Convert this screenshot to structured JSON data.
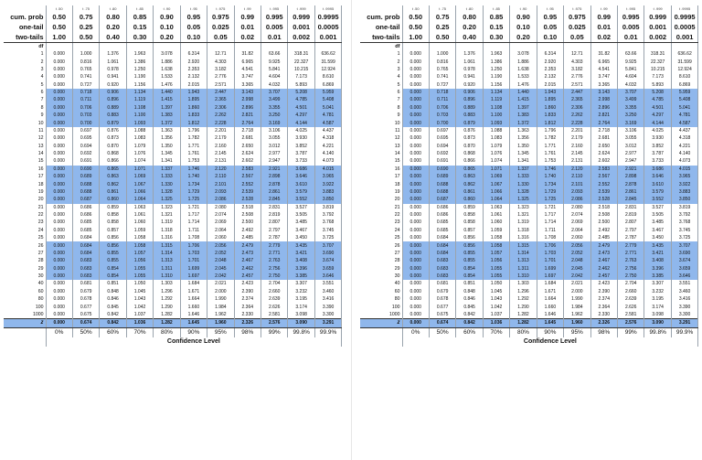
{
  "table": {
    "labels": {
      "cum_prob": "cum. prob",
      "one_tail": "one-tail",
      "two_tails": "two-tails",
      "df": "df",
      "z": "z",
      "confidence_level": "Confidence Level"
    },
    "t_subscripts": [
      "t .50",
      "t .75",
      "t .80",
      "t .85",
      "t .90",
      "t .95",
      "t .975",
      "t .99",
      "t .995",
      "t .999",
      "t .9995"
    ],
    "cum_prob": [
      "0.50",
      "0.75",
      "0.80",
      "0.85",
      "0.90",
      "0.95",
      "0.975",
      "0.99",
      "0.995",
      "0.999",
      "0.9995"
    ],
    "one_tail": [
      "0.50",
      "0.25",
      "0.20",
      "0.15",
      "0.10",
      "0.05",
      "0.025",
      "0.01",
      "0.005",
      "0.001",
      "0.0005"
    ],
    "two_tails": [
      "1.00",
      "0.50",
      "0.40",
      "0.30",
      "0.20",
      "0.10",
      "0.05",
      "0.02",
      "0.01",
      "0.002",
      "0.001"
    ],
    "rows": [
      [
        "1",
        "0.000",
        "1.000",
        "1.376",
        "1.963",
        "3.078",
        "6.314",
        "12.71",
        "31.82",
        "63.66",
        "318.31",
        "636.62"
      ],
      [
        "2",
        "0.000",
        "0.816",
        "1.061",
        "1.386",
        "1.886",
        "2.920",
        "4.303",
        "6.965",
        "9.925",
        "22.327",
        "31.599"
      ],
      [
        "3",
        "0.000",
        "0.765",
        "0.978",
        "1.250",
        "1.638",
        "2.353",
        "3.182",
        "4.541",
        "5.841",
        "10.215",
        "12.924"
      ],
      [
        "4",
        "0.000",
        "0.741",
        "0.941",
        "1.190",
        "1.533",
        "2.132",
        "2.776",
        "3.747",
        "4.604",
        "7.173",
        "8.610"
      ],
      [
        "5",
        "0.000",
        "0.727",
        "0.920",
        "1.156",
        "1.476",
        "2.015",
        "2.571",
        "3.365",
        "4.032",
        "5.893",
        "6.869"
      ],
      [
        "6",
        "0.000",
        "0.718",
        "0.906",
        "1.134",
        "1.440",
        "1.943",
        "2.447",
        "3.143",
        "3.707",
        "5.208",
        "5.959"
      ],
      [
        "7",
        "0.000",
        "0.711",
        "0.896",
        "1.119",
        "1.415",
        "1.895",
        "2.365",
        "2.998",
        "3.499",
        "4.785",
        "5.408"
      ],
      [
        "8",
        "0.000",
        "0.706",
        "0.889",
        "1.108",
        "1.397",
        "1.860",
        "2.306",
        "2.896",
        "3.355",
        "4.501",
        "5.041"
      ],
      [
        "9",
        "0.000",
        "0.703",
        "0.883",
        "1.100",
        "1.383",
        "1.833",
        "2.262",
        "2.821",
        "3.250",
        "4.297",
        "4.781"
      ],
      [
        "10",
        "0.000",
        "0.700",
        "0.879",
        "1.093",
        "1.372",
        "1.812",
        "2.228",
        "2.764",
        "3.169",
        "4.144",
        "4.587"
      ],
      [
        "11",
        "0.000",
        "0.697",
        "0.876",
        "1.088",
        "1.363",
        "1.796",
        "2.201",
        "2.718",
        "3.106",
        "4.025",
        "4.437"
      ],
      [
        "12",
        "0.000",
        "0.695",
        "0.873",
        "1.083",
        "1.356",
        "1.782",
        "2.179",
        "2.681",
        "3.055",
        "3.930",
        "4.318"
      ],
      [
        "13",
        "0.000",
        "0.694",
        "0.870",
        "1.079",
        "1.350",
        "1.771",
        "2.160",
        "2.650",
        "3.012",
        "3.852",
        "4.221"
      ],
      [
        "14",
        "0.000",
        "0.692",
        "0.868",
        "1.076",
        "1.345",
        "1.761",
        "2.145",
        "2.624",
        "2.977",
        "3.787",
        "4.140"
      ],
      [
        "15",
        "0.000",
        "0.691",
        "0.866",
        "1.074",
        "1.341",
        "1.753",
        "2.131",
        "2.602",
        "2.947",
        "3.733",
        "4.073"
      ],
      [
        "16",
        "0.000",
        "0.690",
        "0.865",
        "1.071",
        "1.337",
        "1.746",
        "2.120",
        "2.583",
        "2.921",
        "3.686",
        "4.015"
      ],
      [
        "17",
        "0.000",
        "0.689",
        "0.863",
        "1.069",
        "1.333",
        "1.740",
        "2.110",
        "2.567",
        "2.898",
        "3.646",
        "3.965"
      ],
      [
        "18",
        "0.000",
        "0.688",
        "0.862",
        "1.067",
        "1.330",
        "1.734",
        "2.101",
        "2.552",
        "2.878",
        "3.610",
        "3.922"
      ],
      [
        "19",
        "0.000",
        "0.688",
        "0.861",
        "1.066",
        "1.328",
        "1.729",
        "2.093",
        "2.539",
        "2.861",
        "3.579",
        "3.883"
      ],
      [
        "20",
        "0.000",
        "0.687",
        "0.860",
        "1.064",
        "1.325",
        "1.725",
        "2.086",
        "2.528",
        "2.845",
        "3.552",
        "3.850"
      ],
      [
        "21",
        "0.000",
        "0.686",
        "0.859",
        "1.063",
        "1.323",
        "1.721",
        "2.080",
        "2.518",
        "2.831",
        "3.527",
        "3.819"
      ],
      [
        "22",
        "0.000",
        "0.686",
        "0.858",
        "1.061",
        "1.321",
        "1.717",
        "2.074",
        "2.508",
        "2.819",
        "3.505",
        "3.792"
      ],
      [
        "23",
        "0.000",
        "0.685",
        "0.858",
        "1.060",
        "1.319",
        "1.714",
        "2.069",
        "2.500",
        "2.807",
        "3.485",
        "3.768"
      ],
      [
        "24",
        "0.000",
        "0.685",
        "0.857",
        "1.059",
        "1.318",
        "1.711",
        "2.064",
        "2.492",
        "2.797",
        "3.467",
        "3.745"
      ],
      [
        "25",
        "0.000",
        "0.684",
        "0.856",
        "1.058",
        "1.316",
        "1.708",
        "2.060",
        "2.485",
        "2.787",
        "3.450",
        "3.725"
      ],
      [
        "26",
        "0.000",
        "0.684",
        "0.856",
        "1.058",
        "1.315",
        "1.706",
        "2.056",
        "2.479",
        "2.779",
        "3.435",
        "3.707"
      ],
      [
        "27",
        "0.000",
        "0.684",
        "0.855",
        "1.057",
        "1.314",
        "1.703",
        "2.052",
        "2.473",
        "2.771",
        "3.421",
        "3.690"
      ],
      [
        "28",
        "0.000",
        "0.683",
        "0.855",
        "1.056",
        "1.313",
        "1.701",
        "2.048",
        "2.467",
        "2.763",
        "3.408",
        "3.674"
      ],
      [
        "29",
        "0.000",
        "0.683",
        "0.854",
        "1.055",
        "1.311",
        "1.699",
        "2.045",
        "2.462",
        "2.756",
        "3.396",
        "3.659"
      ],
      [
        "30",
        "0.000",
        "0.683",
        "0.854",
        "1.055",
        "1.310",
        "1.697",
        "2.042",
        "2.457",
        "2.750",
        "3.385",
        "3.646"
      ],
      [
        "40",
        "0.000",
        "0.681",
        "0.851",
        "1.050",
        "1.303",
        "1.684",
        "2.021",
        "2.423",
        "2.704",
        "3.307",
        "3.551"
      ],
      [
        "60",
        "0.000",
        "0.679",
        "0.848",
        "1.045",
        "1.296",
        "1.671",
        "2.000",
        "2.390",
        "2.660",
        "3.232",
        "3.460"
      ],
      [
        "80",
        "0.000",
        "0.678",
        "0.846",
        "1.043",
        "1.292",
        "1.664",
        "1.990",
        "2.374",
        "2.639",
        "3.195",
        "3.416"
      ],
      [
        "100",
        "0.000",
        "0.677",
        "0.845",
        "1.042",
        "1.290",
        "1.660",
        "1.984",
        "2.364",
        "2.626",
        "3.174",
        "3.390"
      ],
      [
        "1000",
        "0.000",
        "0.675",
        "0.842",
        "1.037",
        "1.282",
        "1.646",
        "1.962",
        "2.330",
        "2.581",
        "3.098",
        "3.300"
      ]
    ],
    "z_row": [
      "0.000",
      "0.674",
      "0.842",
      "1.036",
      "1.282",
      "1.645",
      "1.960",
      "2.326",
      "2.576",
      "3.090",
      "3.291"
    ],
    "confidence": [
      "0%",
      "50%",
      "60%",
      "70%",
      "80%",
      "90%",
      "95%",
      "98%",
      "99%",
      "99.8%",
      "99.9%"
    ]
  },
  "colors": {
    "shade": "#8fb7ec",
    "rule": "#333333",
    "grid": "#9aa3ad"
  }
}
